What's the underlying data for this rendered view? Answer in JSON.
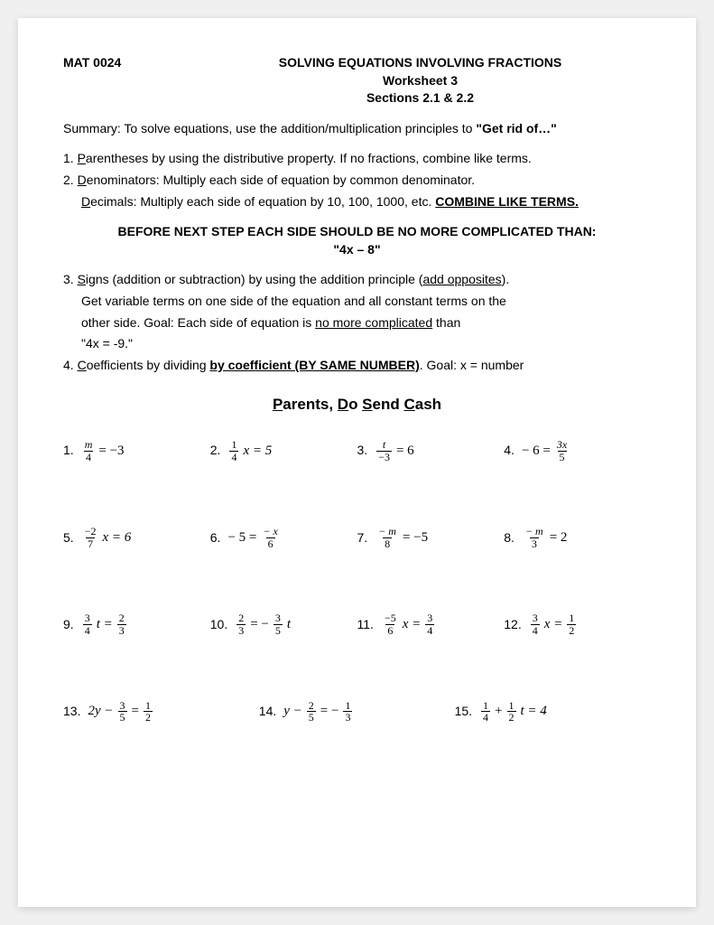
{
  "header": {
    "course": "MAT 0024",
    "title1": "SOLVING EQUATIONS INVOLVING FRACTIONS",
    "title2": "Worksheet 3",
    "title3": "Sections 2.1 & 2.2"
  },
  "summary": {
    "prefix": "Summary:  To solve equations, use the addition/multiplication principles to ",
    "emphasis": "\"Get rid of…\""
  },
  "step1": {
    "num": "1.  ",
    "lead_u": "P",
    "rest": "arentheses by using the distributive property.   If no fractions, combine like terms."
  },
  "step2": {
    "num": "2.  ",
    "lead_u": "D",
    "rest": "enominators:  Multiply each side of equation by common denominator.",
    "sub_lead_u": "D",
    "sub_rest": "ecimals:  Multiply each side of equation by 10, 100, 1000, etc. ",
    "sub_emph": "COMBINE LIKE TERMS."
  },
  "before": {
    "line1": "BEFORE NEXT STEP EACH SIDE SHOULD BE NO MORE COMPLICATED THAN:",
    "line2": "\"4x – 8\""
  },
  "step3": {
    "num": "3.  ",
    "lead_u": "S",
    "rest1": "igns (addition or subtraction) by using the addition principle (",
    "rest1_u": "add opposites",
    "rest1_end": ").",
    "line2": "Get variable terms on one side of the equation and all constant terms on the",
    "line3a": "other side.  Goal:  Each side of equation is ",
    "line3_u": "no more complicated",
    "line3b": " than",
    "line4": " \"4x = -9.\""
  },
  "step4": {
    "num": "4.  ",
    "lead_u": "C",
    "rest1": "oefficients by dividing ",
    "emph": "by coefficient (BY SAME NUMBER)",
    "rest2": ".   Goal:  x = number"
  },
  "mnemonic": {
    "l1": "P",
    "t1": "arents",
    "c1": ", ",
    "l2": "D",
    "t2": "o ",
    "l3": "S",
    "t3": "end ",
    "l4": "C",
    "t4": "ash"
  },
  "problems": {
    "p1": {
      "num": "1.",
      "frac_n": "m",
      "frac_d": "4",
      "rhs": "= −3"
    },
    "p2": {
      "num": "2.",
      "frac_n": "1",
      "frac_d": "4",
      "after": "x = 5"
    },
    "p3": {
      "num": "3.",
      "frac_n": "t",
      "frac_d": "−3",
      "rhs": "= 6"
    },
    "p4": {
      "num": "4.",
      "pre": "− 6 =",
      "frac_n": "3x",
      "frac_d": "5"
    },
    "p5": {
      "num": "5.",
      "frac_n": "−2",
      "frac_d": "7",
      "after": "x = 6"
    },
    "p6": {
      "num": "6.",
      "pre": "− 5 =",
      "frac_n": "− x",
      "frac_d": "6"
    },
    "p7": {
      "num": "7.",
      "frac_n": "− m",
      "frac_d": "8",
      "rhs": "= −5"
    },
    "p8": {
      "num": "8.",
      "frac_n": "− m",
      "frac_d": "3",
      "rhs": "= 2"
    },
    "p9": {
      "num": "9.",
      "f1n": "3",
      "f1d": "4",
      "mid": "t =",
      "f2n": "2",
      "f2d": "3"
    },
    "p10": {
      "num": "10.",
      "f1n": "2",
      "f1d": "3",
      "mid": "= −",
      "f2n": "3",
      "f2d": "5",
      "after": "t"
    },
    "p11": {
      "num": "11.",
      "f1n": "−5",
      "f1d": "6",
      "mid": "x =",
      "f2n": "3",
      "f2d": "4"
    },
    "p12": {
      "num": "12.",
      "f1n": "3",
      "f1d": "4",
      "mid": "x =",
      "f2n": "1",
      "f2d": "2"
    },
    "p13": {
      "num": "13.",
      "pre": "2y −",
      "f1n": "3",
      "f1d": "5",
      "mid": "=",
      "f2n": "1",
      "f2d": "2"
    },
    "p14": {
      "num": "14.",
      "pre": "y −",
      "f1n": "2",
      "f1d": "5",
      "mid": "= −",
      "f2n": "1",
      "f2d": "3"
    },
    "p15": {
      "num": "15.",
      "f1n": "1",
      "f1d": "4",
      "mid": "+",
      "f2n": "1",
      "f2d": "2",
      "after": "t = 4"
    }
  }
}
